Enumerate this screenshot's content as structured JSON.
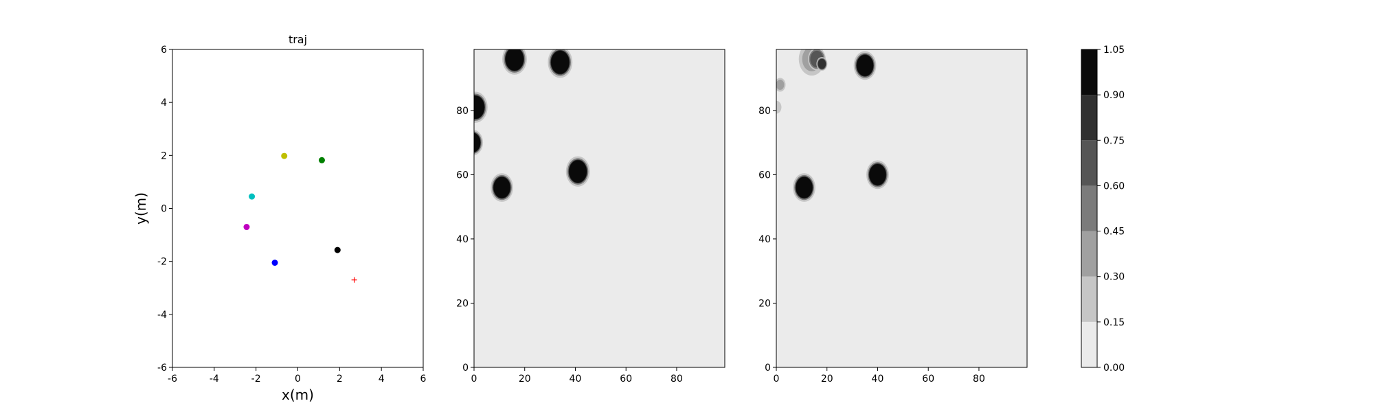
{
  "chart_data": [
    {
      "type": "scatter",
      "title": "traj",
      "xlabel": "x(m)",
      "ylabel": "y(m)",
      "xlim": [
        -6,
        6
      ],
      "ylim": [
        -6,
        6
      ],
      "xticks": [
        -6,
        -4,
        -2,
        0,
        2,
        4,
        6
      ],
      "yticks": [
        -6,
        -4,
        -2,
        0,
        2,
        4,
        6
      ],
      "grid": false,
      "points": [
        {
          "x": -0.65,
          "y": 1.98,
          "color": "#bfbf00",
          "marker": "circle"
        },
        {
          "x": 1.15,
          "y": 1.82,
          "color": "#008000",
          "marker": "circle"
        },
        {
          "x": -2.2,
          "y": 0.45,
          "color": "#00bfbf",
          "marker": "circle"
        },
        {
          "x": -2.45,
          "y": -0.7,
          "color": "#bf00bf",
          "marker": "circle"
        },
        {
          "x": -1.1,
          "y": -2.05,
          "color": "#0000ff",
          "marker": "circle"
        },
        {
          "x": 1.9,
          "y": -1.57,
          "color": "#000000",
          "marker": "circle"
        },
        {
          "x": 2.7,
          "y": -2.7,
          "color": "#ff0000",
          "marker": "plus"
        }
      ]
    },
    {
      "type": "heatmap",
      "title": "",
      "xlim": [
        0,
        99
      ],
      "ylim": [
        0,
        99
      ],
      "xticks": [
        0,
        20,
        40,
        60,
        80
      ],
      "yticks": [
        0,
        20,
        40,
        60,
        80
      ],
      "background_value": 0.05,
      "blobs": [
        {
          "cx": 16,
          "cy": 96,
          "r": 3.6,
          "value": 1.0
        },
        {
          "cx": 34,
          "cy": 95,
          "r": 3.6,
          "value": 1.0
        },
        {
          "cx": 0.5,
          "cy": 81,
          "r": 3.6,
          "value": 1.0
        },
        {
          "cx": -0.5,
          "cy": 70,
          "r": 3.0,
          "value": 1.0
        },
        {
          "cx": 11,
          "cy": 56,
          "r": 3.3,
          "value": 1.0
        },
        {
          "cx": 41,
          "cy": 61,
          "r": 3.5,
          "value": 1.0
        }
      ]
    },
    {
      "type": "heatmap",
      "title": "",
      "xlim": [
        0,
        99
      ],
      "ylim": [
        0,
        99
      ],
      "xticks": [
        0,
        20,
        40,
        60,
        80
      ],
      "yticks": [
        0,
        20,
        40,
        60,
        80
      ],
      "background_value": 0.05,
      "blobs": [
        {
          "cx": 14,
          "cy": 96,
          "r": 3.8,
          "value": 0.4
        },
        {
          "cx": 16,
          "cy": 96,
          "r": 2.6,
          "value": 0.65
        },
        {
          "cx": 18,
          "cy": 94.5,
          "r": 1.6,
          "value": 0.75
        },
        {
          "cx": 35,
          "cy": 94,
          "r": 3.3,
          "value": 1.0
        },
        {
          "cx": 1.5,
          "cy": 88,
          "r": 1.6,
          "value": 0.3
        },
        {
          "cx": 0,
          "cy": 81,
          "r": 1.5,
          "value": 0.25
        },
        {
          "cx": 11,
          "cy": 56,
          "r": 3.3,
          "value": 1.0
        },
        {
          "cx": 40,
          "cy": 60,
          "r": 3.3,
          "value": 1.0
        }
      ]
    },
    {
      "type": "colorbar",
      "range": [
        0.0,
        1.05
      ],
      "levels": [
        0.0,
        0.15,
        0.3,
        0.45,
        0.6,
        0.75,
        0.9,
        1.05
      ],
      "tick_labels": [
        "0.00",
        "0.15",
        "0.30",
        "0.45",
        "0.60",
        "0.75",
        "0.90",
        "1.05"
      ],
      "colors": [
        "#ebebeb",
        "#c6c6c6",
        "#a0a0a0",
        "#7b7b7b",
        "#555555",
        "#303030",
        "#0a0a0a"
      ]
    }
  ]
}
